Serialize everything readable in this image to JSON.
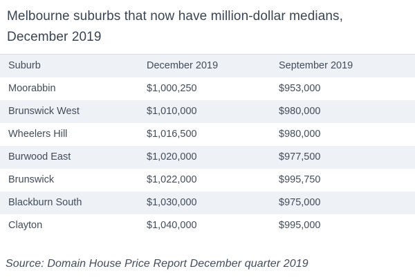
{
  "title": "Melbourne suburbs that now have million-dollar medians, December 2019",
  "source_note": "Source: Domain House Price Report December quarter 2019",
  "table": {
    "columns": [
      "Suburb",
      "December 2019",
      "September 2019"
    ],
    "rows": [
      [
        "Moorabbin",
        "$1,000,250",
        "$953,000"
      ],
      [
        "Brunswick West",
        "$1,010,000",
        "$980,000"
      ],
      [
        "Wheelers Hill",
        "$1,016,500",
        "$980,000"
      ],
      [
        "Burwood East",
        "$1,020,000",
        "$977,500"
      ],
      [
        "Brunswick",
        "$1,022,000",
        "$995,750"
      ],
      [
        "Blackburn South",
        "$1,030,000",
        "$975,000"
      ],
      [
        "Clayton",
        "$1,040,000",
        "$995,000"
      ]
    ]
  },
  "chart_data": {
    "type": "table",
    "title": "Melbourne suburbs that now have million-dollar medians, December 2019",
    "columns": [
      "Suburb",
      "December 2019",
      "September 2019"
    ],
    "rows": [
      {
        "suburb": "Moorabbin",
        "december_2019": 1000250,
        "september_2019": 953000
      },
      {
        "suburb": "Brunswick West",
        "december_2019": 1010000,
        "september_2019": 980000
      },
      {
        "suburb": "Wheelers Hill",
        "december_2019": 1016500,
        "september_2019": 980000
      },
      {
        "suburb": "Burwood East",
        "december_2019": 1020000,
        "september_2019": 977500
      },
      {
        "suburb": "Brunswick",
        "december_2019": 1022000,
        "september_2019": 995750
      },
      {
        "suburb": "Blackburn South",
        "december_2019": 1030000,
        "september_2019": 975000
      },
      {
        "suburb": "Clayton",
        "december_2019": 1040000,
        "september_2019": 995000
      }
    ],
    "source": "Source: Domain House Price Report December quarter 2019",
    "value_format": "AUD currency",
    "row_stripe_style": "alternating, header and even data rows shaded"
  },
  "colors": {
    "background": "#ffffff",
    "row_stripe": "#eef1f5",
    "top_border": "#d8dce2",
    "title_text": "#3a4452",
    "body_text": "#424c59"
  }
}
